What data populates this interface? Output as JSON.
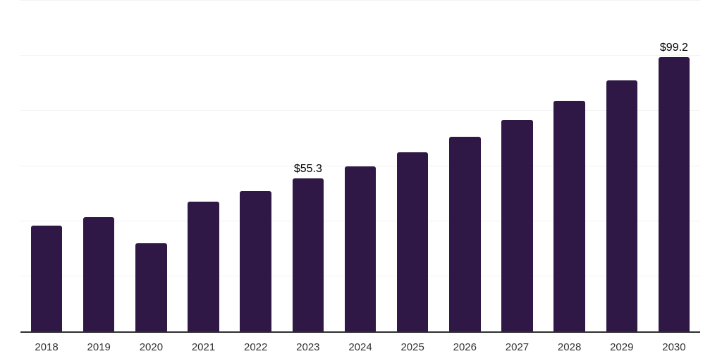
{
  "chart_data": {
    "type": "bar",
    "title": "",
    "xlabel": "",
    "ylabel": "",
    "categories": [
      "2018",
      "2019",
      "2020",
      "2021",
      "2022",
      "2023",
      "2024",
      "2025",
      "2026",
      "2027",
      "2028",
      "2029",
      "2030"
    ],
    "values": [
      38.2,
      41.3,
      31.8,
      47.0,
      50.9,
      55.3,
      59.7,
      64.8,
      70.4,
      76.6,
      83.5,
      90.9,
      99.2
    ],
    "data_labels": [
      "",
      "",
      "",
      "",
      "",
      "$55.3",
      "",
      "",
      "",
      "",
      "",
      "",
      "$99.2"
    ],
    "ylim": [
      0,
      120
    ],
    "grid_step": 20,
    "grid": "horizontal-only",
    "legend_position": "none",
    "y_axis_tick_labels_visible": false,
    "colors": {
      "bar": "#2F1845",
      "gridline": "#F2F2F2",
      "axis_line": "#2E2E2E",
      "tick_label": "#333333",
      "data_label": "#000000",
      "background": "#FFFFFF"
    }
  }
}
